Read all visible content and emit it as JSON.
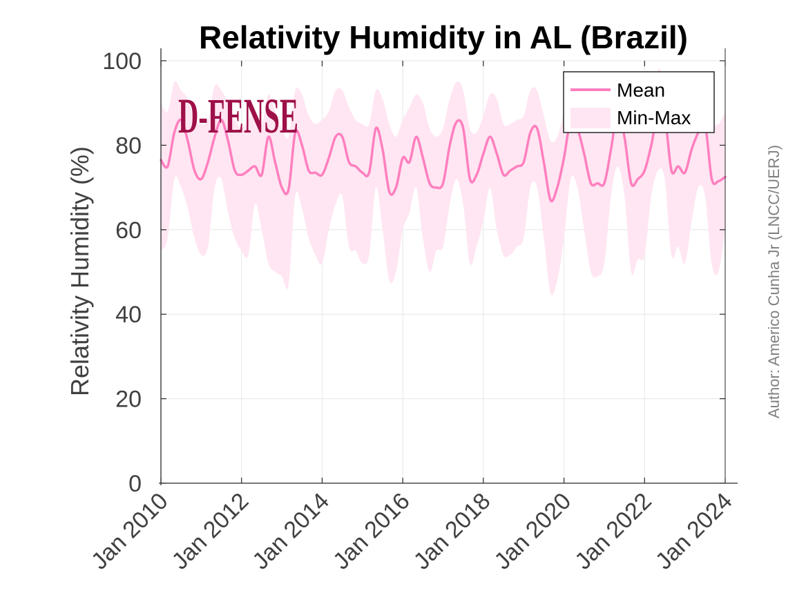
{
  "chart_data": {
    "type": "area",
    "title": "Relativity Humidity in AL (Brazil)",
    "ylabel": "Relativity Humidity (%)",
    "xlabel": "",
    "ylim": [
      0,
      100
    ],
    "xlim": [
      "2010-01",
      "2024-01"
    ],
    "yticks": [
      "0",
      "20",
      "40",
      "60",
      "80",
      "100"
    ],
    "xticks": [
      "Jan 2010",
      "Jan 2012",
      "Jan 2014",
      "Jan 2016",
      "Jan 2018",
      "Jan 2020",
      "Jan 2022",
      "Jan 2024"
    ],
    "grid": true,
    "legend_position": "top-right",
    "colors": {
      "mean": "#ff7fbf",
      "band": "#ffe6f2",
      "logo": "#9e1048"
    },
    "series": [
      {
        "name": "Mean",
        "style": "line"
      },
      {
        "name": "Min-Max",
        "style": "band"
      }
    ],
    "x": [
      "2010-01",
      "2010-03",
      "2010-05",
      "2010-07",
      "2010-09",
      "2010-11",
      "2011-01",
      "2011-03",
      "2011-05",
      "2011-07",
      "2011-09",
      "2011-11",
      "2012-01",
      "2012-03",
      "2012-05",
      "2012-07",
      "2012-09",
      "2012-11",
      "2013-01",
      "2013-03",
      "2013-05",
      "2013-07",
      "2013-09",
      "2013-11",
      "2014-01",
      "2014-03",
      "2014-05",
      "2014-07",
      "2014-09",
      "2014-11",
      "2015-01",
      "2015-03",
      "2015-05",
      "2015-07",
      "2015-09",
      "2015-11",
      "2016-01",
      "2016-03",
      "2016-05",
      "2016-07",
      "2016-09",
      "2016-11",
      "2017-01",
      "2017-03",
      "2017-05",
      "2017-07",
      "2017-09",
      "2017-11",
      "2018-01",
      "2018-03",
      "2018-05",
      "2018-07",
      "2018-09",
      "2018-11",
      "2019-01",
      "2019-03",
      "2019-05",
      "2019-07",
      "2019-09",
      "2019-11",
      "2020-01",
      "2020-03",
      "2020-05",
      "2020-07",
      "2020-09",
      "2020-11",
      "2021-01",
      "2021-03",
      "2021-05",
      "2021-07",
      "2021-09",
      "2021-11",
      "2022-01",
      "2022-03",
      "2022-05",
      "2022-07",
      "2022-09",
      "2022-11",
      "2023-01",
      "2023-03",
      "2023-05",
      "2023-07",
      "2023-09",
      "2023-11",
      "2024-01"
    ],
    "mean": [
      76.5,
      75,
      83,
      86,
      81,
      74,
      72,
      76,
      82,
      86,
      81,
      74,
      73,
      74,
      75,
      73,
      82,
      76,
      70,
      69.5,
      83,
      80,
      74,
      73.5,
      73,
      77,
      82,
      82,
      76,
      75,
      73.5,
      73.5,
      84,
      79,
      69,
      70,
      77,
      76,
      82,
      77,
      71,
      70,
      71,
      80,
      85.5,
      84,
      72,
      73,
      78,
      82,
      78,
      73,
      74,
      75,
      76,
      83,
      84,
      76,
      67,
      70,
      77,
      86,
      84,
      78,
      71,
      71,
      71,
      79,
      88,
      82,
      71,
      72,
      74,
      80,
      88,
      87,
      74,
      75,
      73.5,
      79,
      83,
      85,
      72,
      71.5,
      72.5
    ],
    "min": [
      55,
      58,
      72,
      70,
      65,
      58,
      54,
      56,
      70,
      72,
      64,
      58,
      55,
      54,
      66,
      60,
      52,
      50,
      49,
      47,
      68,
      65,
      58,
      54,
      52,
      60,
      66,
      68,
      56,
      55,
      52,
      54,
      70,
      60,
      48,
      50,
      60,
      64,
      70,
      58,
      50,
      55,
      56,
      66,
      72,
      66,
      52,
      56,
      62,
      70,
      60,
      54,
      54,
      56,
      58,
      70,
      70,
      58,
      45,
      48,
      58,
      72,
      70,
      60,
      50,
      49,
      52,
      68,
      75,
      68,
      50,
      53,
      54,
      68,
      74,
      72,
      54,
      56,
      52,
      62,
      70,
      68,
      52,
      50,
      60
    ],
    "max": [
      90,
      88,
      95,
      93,
      91,
      86,
      85,
      86,
      94,
      93,
      90,
      86,
      84,
      86,
      88,
      85,
      92,
      88,
      84,
      82,
      93,
      92,
      87,
      85,
      86,
      88,
      93,
      93,
      89,
      86,
      85,
      85,
      93,
      91,
      85,
      82,
      86,
      89,
      92,
      90,
      84,
      82,
      84,
      91,
      95,
      93,
      84,
      83,
      87,
      92,
      91,
      85,
      85,
      86,
      87,
      93,
      93,
      87,
      81,
      82,
      88,
      96,
      94,
      90,
      84,
      85,
      84,
      90,
      96,
      93,
      85,
      84,
      86,
      92,
      98,
      95,
      86,
      84,
      84,
      90,
      94,
      95,
      86,
      85,
      88
    ]
  },
  "legend": {
    "mean_label": "Mean",
    "band_label": "Min-Max"
  },
  "author": "Author: Americo Cunha Jr (LNCC/UERJ)",
  "logo_text": "D-FENSE"
}
